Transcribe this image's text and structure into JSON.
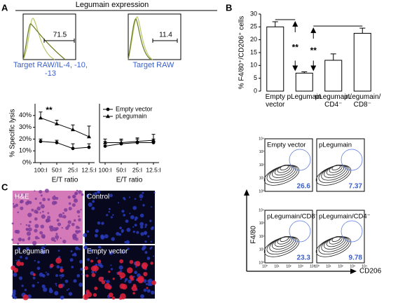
{
  "panel_labels": [
    "A",
    "B",
    "C"
  ],
  "histograms": {
    "title": "Legumain expression",
    "items": [
      {
        "label": "Target RAW/IL-4, -10, -13",
        "value": 71.5
      },
      {
        "label": "Target RAW",
        "value": 11.4
      }
    ]
  },
  "chart_data": [
    {
      "type": "line",
      "y_label": "% Specific lysis",
      "x_label": "E/T ratio",
      "categories": [
        "100:I",
        "50:I",
        "25:I",
        "12.5:I"
      ],
      "ylim": [
        0,
        50
      ],
      "yticks": [
        {
          "value": 0,
          "label": "0%"
        },
        {
          "value": 10,
          "label": "10%"
        },
        {
          "value": 20,
          "label": "20%"
        },
        {
          "value": 30,
          "label": "30%"
        },
        {
          "value": 40,
          "label": "40%"
        }
      ],
      "series": [
        {
          "name": "Empty vector",
          "color": "#000000",
          "marker": "circle",
          "values": [
            18,
            17,
            12,
            13
          ],
          "errors": [
            2,
            2,
            4,
            3
          ]
        },
        {
          "name": "pLegumain",
          "color": "#000000",
          "marker": "triangle",
          "values": [
            38,
            33,
            28,
            22
          ],
          "errors": [
            5,
            3,
            4,
            9
          ]
        }
      ],
      "legend": "upper right",
      "annotations": [
        {
          "text": "**"
        }
      ]
    },
    {
      "type": "line",
      "x_label": "E/T ratio",
      "categories": [
        "100:I",
        "50:I",
        "25:I",
        "12.5:I"
      ],
      "ylim": [
        0,
        50
      ],
      "series": [
        {
          "color": "#000000",
          "marker": "circle",
          "values": [
            14,
            16,
            17,
            17
          ],
          "errors": [
            4,
            3,
            3,
            3
          ]
        },
        {
          "color": "#000000",
          "marker": "triangle",
          "values": [
            17,
            17,
            18,
            19
          ],
          "errors": [
            3,
            3,
            3,
            5
          ]
        }
      ]
    },
    {
      "type": "bar",
      "y_label": "% F4/80⁺/CD206⁺ cells",
      "categories": [
        "Empty\nvector",
        "pLegumain",
        "pLegumain/\nCD4⁻",
        "pLegumain/\nCD8⁻"
      ],
      "values": [
        25,
        7,
        12,
        22.5
      ],
      "errors": [
        2,
        0.5,
        2.5,
        2
      ],
      "color": "#ffffff",
      "ylim": [
        0,
        30
      ],
      "yticks": [
        0,
        5,
        10,
        15,
        20,
        25,
        30
      ],
      "annotations": [
        {
          "text": "**"
        },
        {
          "text": "**"
        }
      ]
    }
  ],
  "flow": {
    "y_label": "F4/80",
    "x_label": "CD206",
    "ticks": [
      "10⁰",
      "10¹",
      "10²",
      "10³",
      "10⁴"
    ],
    "plots": [
      {
        "label": "Empty vector",
        "value": 26.6
      },
      {
        "label": "pLegumain",
        "value": 7.37
      },
      {
        "label": "pLegumain/CD8⁻",
        "value": 23.3
      },
      {
        "label": "pLegumain/CD4⁻",
        "value": 9.78
      }
    ]
  },
  "micrographs": {
    "labels": [
      "H&E",
      "Control",
      "pLegumain",
      "Empty vector"
    ]
  }
}
